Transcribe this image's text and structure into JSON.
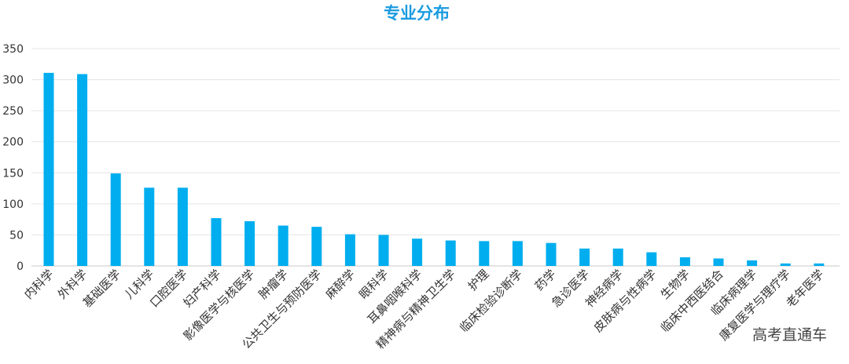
{
  "chart_data": {
    "type": "bar",
    "title": "专业分布",
    "xlabel": "",
    "ylabel": "",
    "ylim": [
      0,
      350
    ],
    "yticks": [
      0,
      50,
      100,
      150,
      200,
      250,
      300,
      350
    ],
    "grid": true,
    "legend": "none",
    "bar_color": "#00aeef",
    "title_color": "#1a9be0",
    "categories": [
      "内科学",
      "外科学",
      "基础医学",
      "儿科学",
      "口腔医学",
      "妇产科学",
      "影像医学与核医学",
      "肿瘤学",
      "公共卫生与预防医学",
      "麻醉学",
      "眼科学",
      "耳鼻咽喉科学",
      "精神病与精神卫生学",
      "护理",
      "临床检验诊断学",
      "药学",
      "急诊医学",
      "神经病学",
      "皮肤病与性病学",
      "生物学",
      "临床中西医结合",
      "临床病理学",
      "康复医学与理疗学",
      "老年医学"
    ],
    "values": [
      311,
      309,
      149,
      126,
      126,
      77,
      72,
      65,
      63,
      51,
      50,
      44,
      41,
      40,
      40,
      37,
      28,
      28,
      22,
      14,
      12,
      9,
      4,
      4
    ]
  },
  "watermark": "高考直通车"
}
